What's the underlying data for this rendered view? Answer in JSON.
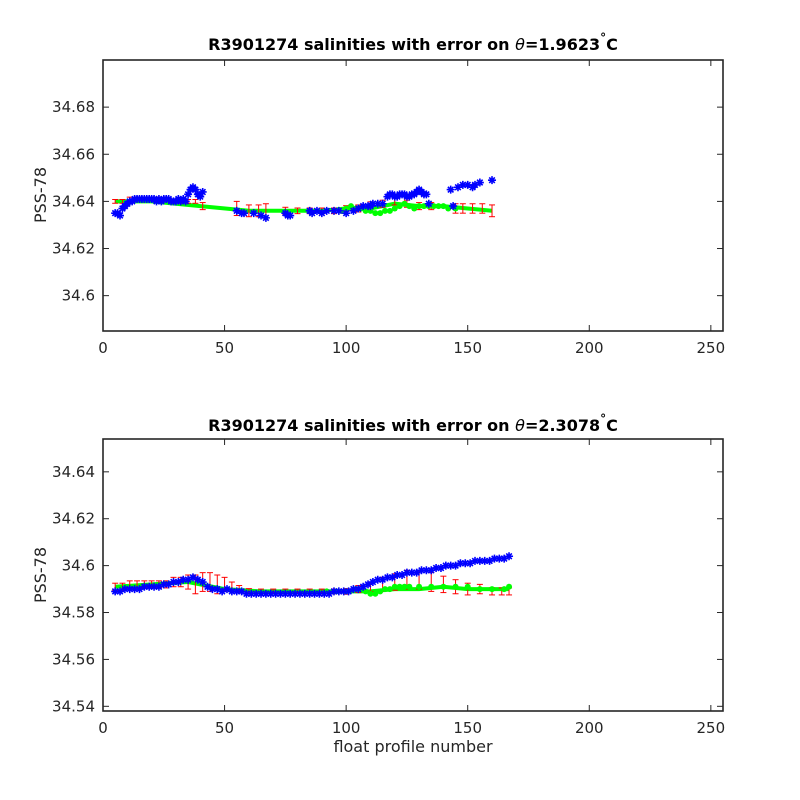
{
  "chart_data": [
    {
      "type": "scatter",
      "title": {
        "prefix": "R3901274 salinities with error on ",
        "symbol": "θ",
        "value": "=1.9623",
        "degree": "°",
        "unit": "C"
      },
      "xlabel": "",
      "ylabel": "PSS-78",
      "xlim": [
        0,
        255
      ],
      "ylim": [
        34.585,
        34.7
      ],
      "xticks": [
        0,
        50,
        100,
        150,
        200,
        250
      ],
      "yticks": [
        34.6,
        34.62,
        34.64,
        34.66,
        34.68
      ],
      "ytick_labels": [
        "34.6",
        "34.62",
        "34.64",
        "34.66",
        "34.68"
      ],
      "grid": false,
      "colors": {
        "float": "#0000ff",
        "mapped": "#00ff00",
        "error": "#ff0000"
      },
      "series": [
        {
          "kind": "float_salinity_markers",
          "x": [
            5,
            6,
            7,
            8,
            9,
            10,
            11,
            12,
            13,
            14,
            15,
            16,
            17,
            18,
            19,
            20,
            21,
            22,
            23,
            24,
            25,
            26,
            27,
            28,
            29,
            30,
            31,
            32,
            33,
            34,
            35,
            36,
            37,
            38,
            39,
            40,
            41,
            55,
            57,
            58,
            62,
            65,
            67,
            75,
            76,
            77,
            85,
            86,
            88,
            90,
            92,
            95,
            97,
            100,
            103,
            105,
            107,
            109,
            110,
            111,
            113,
            115,
            117,
            118,
            119,
            120,
            121,
            122,
            123,
            124,
            125,
            126,
            127,
            128,
            129,
            130,
            131,
            132,
            133,
            134,
            143,
            144,
            146,
            148,
            150,
            152,
            153,
            155,
            160
          ],
          "y": [
            34.635,
            34.635,
            34.634,
            34.637,
            34.638,
            34.639,
            34.64,
            34.64,
            34.641,
            34.641,
            34.641,
            34.641,
            34.641,
            34.641,
            34.641,
            34.641,
            34.641,
            34.64,
            34.641,
            34.64,
            34.641,
            34.641,
            34.641,
            34.64,
            34.64,
            34.64,
            34.641,
            34.64,
            34.641,
            34.64,
            34.643,
            34.645,
            34.646,
            34.645,
            34.643,
            34.642,
            34.644,
            34.636,
            34.635,
            34.635,
            34.635,
            34.634,
            34.633,
            34.635,
            34.634,
            34.634,
            34.636,
            34.635,
            34.636,
            34.635,
            34.636,
            34.636,
            34.636,
            34.635,
            34.636,
            34.637,
            34.638,
            34.638,
            34.638,
            34.639,
            34.639,
            34.639,
            34.642,
            34.643,
            34.643,
            34.642,
            34.642,
            34.643,
            34.643,
            34.643,
            34.642,
            34.642,
            34.643,
            34.643,
            34.644,
            34.645,
            34.644,
            34.643,
            34.643,
            34.639,
            34.645,
            34.638,
            34.646,
            34.647,
            34.647,
            34.646,
            34.647,
            34.648,
            34.649
          ]
        },
        {
          "kind": "mapped_salinity_line",
          "x": [
            5,
            20,
            40,
            60,
            75,
            90,
            100,
            110,
            120,
            130,
            140,
            150,
            160
          ],
          "y": [
            34.64,
            34.64,
            34.638,
            34.636,
            34.636,
            34.636,
            34.637,
            34.637,
            34.639,
            34.638,
            34.638,
            34.637,
            34.636
          ]
        },
        {
          "kind": "mapped_error_bars",
          "x": [
            5,
            8,
            11,
            14,
            17,
            20,
            23,
            26,
            29,
            32,
            35,
            38,
            41,
            55,
            60,
            64,
            67,
            75,
            80,
            85,
            90,
            95,
            100,
            105,
            110,
            115,
            120,
            125,
            130,
            135,
            145,
            148,
            152,
            156,
            160
          ],
          "y": [
            34.64,
            34.64,
            34.641,
            34.641,
            34.641,
            34.641,
            34.641,
            34.641,
            34.64,
            34.64,
            34.64,
            34.64,
            34.638,
            34.637,
            34.636,
            34.636,
            34.636,
            34.636,
            34.636,
            34.636,
            34.636,
            34.636,
            34.637,
            34.637,
            34.638,
            34.639,
            34.64,
            34.639,
            34.638,
            34.638,
            34.637,
            34.637,
            34.637,
            34.637,
            34.636
          ],
          "err": [
            0.0008,
            0.0008,
            0.0008,
            0.0008,
            0.0008,
            0.0008,
            0.0008,
            0.0008,
            0.0008,
            0.0008,
            0.0008,
            0.0008,
            0.0015,
            0.003,
            0.0025,
            0.0025,
            0.003,
            0.0015,
            0.0012,
            0.0012,
            0.0012,
            0.0012,
            0.0012,
            0.0015,
            0.0018,
            0.0015,
            0.0015,
            0.0015,
            0.0015,
            0.0015,
            0.002,
            0.002,
            0.002,
            0.002,
            0.0025
          ]
        },
        {
          "kind": "mapped_salinity_markers",
          "x": [
            98,
            100,
            102,
            104,
            106,
            108,
            110,
            112,
            114,
            116,
            118,
            120,
            122,
            124,
            126,
            128,
            130,
            132,
            134,
            136,
            138,
            140,
            142,
            145
          ],
          "y": [
            34.636,
            34.637,
            34.638,
            34.637,
            34.637,
            34.636,
            34.636,
            34.635,
            34.635,
            34.636,
            34.636,
            34.637,
            34.638,
            34.639,
            34.638,
            34.637,
            34.638,
            34.638,
            34.638,
            34.638,
            34.638,
            34.638,
            34.637,
            34.637
          ]
        }
      ]
    },
    {
      "type": "scatter",
      "title": {
        "prefix": "R3901274 salinities with error on ",
        "symbol": "θ",
        "value": "=2.3078",
        "degree": "°",
        "unit": "C"
      },
      "xlabel": "float profile number",
      "ylabel": "PSS-78",
      "xlim": [
        0,
        255
      ],
      "ylim": [
        34.538,
        34.654
      ],
      "xticks": [
        0,
        50,
        100,
        150,
        200,
        250
      ],
      "yticks": [
        34.54,
        34.56,
        34.58,
        34.6,
        34.62,
        34.64
      ],
      "ytick_labels": [
        "34.54",
        "34.56",
        "34.58",
        "34.6",
        "34.62",
        "34.64"
      ],
      "grid": false,
      "colors": {
        "float": "#0000ff",
        "mapped": "#00ff00",
        "error": "#ff0000"
      },
      "series": [
        {
          "kind": "float_salinity_markers",
          "x": [
            5,
            7,
            9,
            11,
            13,
            15,
            17,
            19,
            21,
            23,
            25,
            27,
            29,
            31,
            33,
            35,
            37,
            39,
            41,
            43,
            45,
            47,
            49,
            51,
            53,
            55,
            57,
            59,
            61,
            63,
            65,
            67,
            69,
            71,
            73,
            75,
            77,
            79,
            81,
            83,
            85,
            87,
            89,
            91,
            93,
            95,
            97,
            99,
            101,
            103,
            105,
            107,
            109,
            111,
            113,
            115,
            117,
            119,
            121,
            123,
            125,
            127,
            129,
            131,
            133,
            135,
            137,
            139,
            141,
            143,
            145,
            147,
            149,
            151,
            153,
            155,
            157,
            159,
            161,
            163,
            165,
            167
          ],
          "y": [
            34.589,
            34.589,
            34.59,
            34.59,
            34.59,
            34.59,
            34.591,
            34.591,
            34.591,
            34.591,
            34.592,
            34.592,
            34.593,
            34.593,
            34.594,
            34.594,
            34.595,
            34.594,
            34.593,
            34.591,
            34.59,
            34.59,
            34.589,
            34.59,
            34.589,
            34.589,
            34.589,
            34.588,
            34.588,
            34.588,
            34.588,
            34.588,
            34.588,
            34.588,
            34.588,
            34.588,
            34.588,
            34.588,
            34.588,
            34.588,
            34.588,
            34.588,
            34.588,
            34.588,
            34.588,
            34.589,
            34.589,
            34.589,
            34.589,
            34.59,
            34.59,
            34.591,
            34.592,
            34.593,
            34.594,
            34.594,
            34.595,
            34.595,
            34.596,
            34.596,
            34.597,
            34.597,
            34.597,
            34.598,
            34.598,
            34.598,
            34.599,
            34.599,
            34.6,
            34.6,
            34.6,
            34.601,
            34.601,
            34.601,
            34.602,
            34.602,
            34.602,
            34.602,
            34.603,
            34.603,
            34.603,
            34.604
          ]
        },
        {
          "kind": "mapped_salinity_line",
          "x": [
            5,
            20,
            35,
            50,
            65,
            80,
            95,
            110,
            120,
            130,
            140,
            150,
            160,
            167
          ],
          "y": [
            34.591,
            34.592,
            34.593,
            34.59,
            34.589,
            34.589,
            34.589,
            34.589,
            34.59,
            34.59,
            34.591,
            34.59,
            34.59,
            34.59
          ]
        },
        {
          "kind": "mapped_error_bars",
          "x": [
            5,
            8,
            11,
            14,
            17,
            20,
            23,
            26,
            29,
            32,
            35,
            38,
            41,
            44,
            47,
            50,
            53,
            56,
            60,
            65,
            70,
            75,
            80,
            85,
            90,
            95,
            100,
            105,
            110,
            115,
            120,
            125,
            130,
            135,
            140,
            145,
            150,
            155,
            160,
            164,
            167
          ],
          "y": [
            34.591,
            34.591,
            34.592,
            34.592,
            34.592,
            34.592,
            34.592,
            34.592,
            34.593,
            34.593,
            34.593,
            34.592,
            34.593,
            34.593,
            34.592,
            34.592,
            34.591,
            34.59,
            34.589,
            34.589,
            34.589,
            34.589,
            34.589,
            34.589,
            34.589,
            34.589,
            34.589,
            34.59,
            34.591,
            34.592,
            34.593,
            34.594,
            34.594,
            34.593,
            34.592,
            34.591,
            34.59,
            34.59,
            34.589,
            34.589,
            34.589
          ],
          "err": [
            0.0015,
            0.0015,
            0.0015,
            0.0015,
            0.0015,
            0.0015,
            0.0015,
            0.0015,
            0.002,
            0.002,
            0.003,
            0.004,
            0.004,
            0.004,
            0.004,
            0.003,
            0.002,
            0.0015,
            0.0012,
            0.001,
            0.001,
            0.001,
            0.001,
            0.001,
            0.001,
            0.001,
            0.0012,
            0.0015,
            0.002,
            0.003,
            0.0035,
            0.004,
            0.004,
            0.004,
            0.0035,
            0.003,
            0.0025,
            0.002,
            0.0015,
            0.0015,
            0.0015
          ]
        },
        {
          "kind": "mapped_salinity_markers",
          "x": [
            92,
            96,
            100,
            104,
            108,
            110,
            112,
            114,
            116,
            118,
            120,
            122,
            124,
            126,
            130,
            135,
            140,
            145,
            150,
            155,
            160,
            165,
            167
          ],
          "y": [
            34.589,
            34.589,
            34.589,
            34.59,
            34.589,
            34.588,
            34.588,
            34.589,
            34.59,
            34.59,
            34.591,
            34.591,
            34.591,
            34.591,
            34.591,
            34.591,
            34.591,
            34.591,
            34.591,
            34.59,
            34.59,
            34.59,
            34.591
          ]
        }
      ]
    }
  ]
}
